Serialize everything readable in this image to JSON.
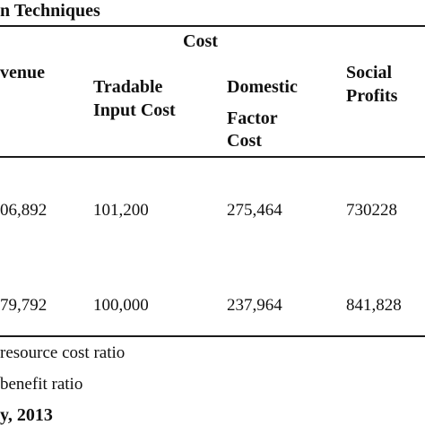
{
  "table": {
    "title_fragment": "n Techniques",
    "group_header": "Cost",
    "headers": {
      "revenue": "venue",
      "tradable_line1": "Tradable",
      "tradable_line2": "Input Cost",
      "domestic_line1": "Domestic",
      "domestic_line2": "Factor",
      "domestic_line3": "Cost",
      "social_line1": "Social",
      "social_line2": "Profits"
    },
    "rows": [
      {
        "revenue": "06,892",
        "tradable": "101,200",
        "domestic": "275,464",
        "social": "730228"
      },
      {
        "revenue": "79,792",
        "tradable": "100,000",
        "domestic": "237,964",
        "social": "841,828"
      }
    ],
    "notes": [
      "resource cost ratio",
      " benefit ratio"
    ],
    "source_fragment": "y, 2013"
  }
}
